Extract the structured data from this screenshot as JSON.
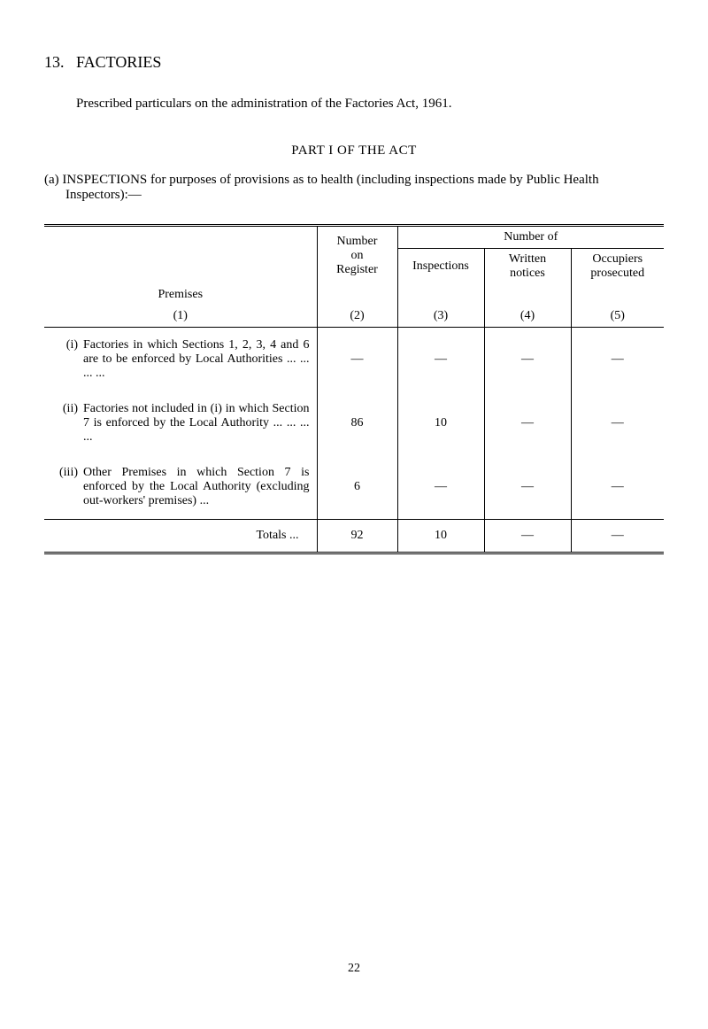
{
  "section": {
    "number": "13.",
    "title": "FACTORIES"
  },
  "intro": "Prescribed particulars on the administration of the Factories Act, 1961.",
  "part_title": "PART I OF THE ACT",
  "subsection_a": {
    "label": "(a)",
    "text": "INSPECTIONS for purposes of provisions as to health (including inspections made by Public Health Inspectors):—"
  },
  "table": {
    "headers": {
      "premises": "Premises",
      "premises_num": "(1)",
      "register": "Number on Register",
      "register_num": "(2)",
      "number_of": "Number of",
      "inspections": "Inspections",
      "inspections_num": "(3)",
      "notices": "Written notices",
      "notices_num": "(4)",
      "occupiers": "Occupiers prosecuted",
      "occupiers_num": "(5)"
    },
    "rows": [
      {
        "num": "(i)",
        "premises": "Factories in which Sections 1, 2, 3, 4 and 6 are to be enforced by Local Authorities    ...      ...      ...      ...",
        "register": "—",
        "inspections": "—",
        "notices": "—",
        "occupiers": "—"
      },
      {
        "num": "(ii)",
        "premises": "Factories not included in (i) in which Section 7 is enforced by the Local Authority      ...      ...      ...      ...",
        "register": "86",
        "inspections": "10",
        "notices": "—",
        "occupiers": "—"
      },
      {
        "num": "(iii)",
        "premises": "Other Premises in which Section 7 is enforced by the Local Authority (excluding out-workers' premises) ...",
        "register": "6",
        "inspections": "—",
        "notices": "—",
        "occupiers": "—"
      }
    ],
    "totals": {
      "label": "Totals      ...",
      "register": "92",
      "inspections": "10",
      "notices": "—",
      "occupiers": "—"
    }
  },
  "page_number": "22"
}
